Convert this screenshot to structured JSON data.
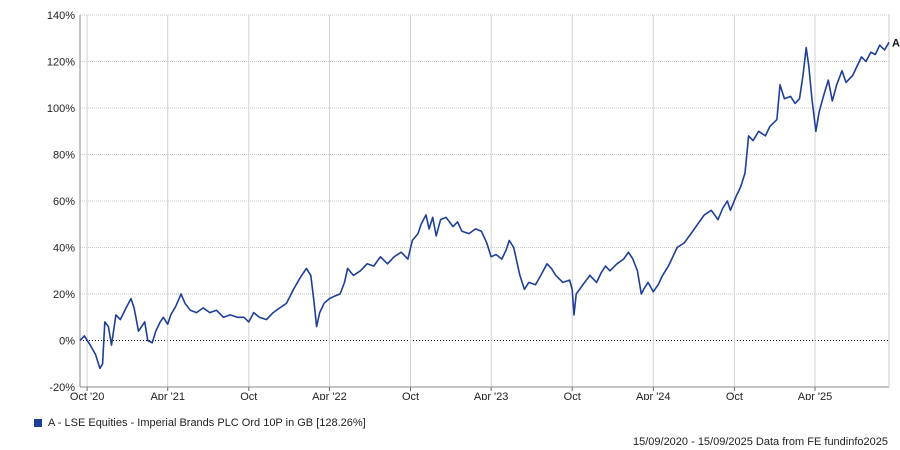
{
  "chart_data": {
    "type": "line",
    "title": "",
    "xlabel": "",
    "ylabel": "",
    "ylim": [
      -20,
      140
    ],
    "y_ticks": [
      -20,
      0,
      20,
      40,
      60,
      80,
      100,
      120,
      140
    ],
    "y_tick_labels": [
      "-20%",
      "0%",
      "20%",
      "40%",
      "60%",
      "80%",
      "100%",
      "120%",
      "140%"
    ],
    "xlim": [
      "2020-09-15",
      "2025-09-15"
    ],
    "x_ticks": [
      "2020-10-01",
      "2021-04-01",
      "2021-10-01",
      "2022-04-01",
      "2022-10-01",
      "2023-04-01",
      "2023-10-01",
      "2024-04-01",
      "2024-10-01",
      "2025-04-01"
    ],
    "x_tick_labels": [
      "Oct '20",
      "Apr '21",
      "Oct",
      "Apr '22",
      "Oct",
      "Apr '23",
      "Oct",
      "Apr '24",
      "Oct",
      "Apr '25"
    ],
    "grid": true,
    "zero_line": "dotted",
    "legend_position": "bottom-left",
    "series": [
      {
        "name": "A - LSE Equities - Imperial Brands PLC Ord 10P in GB [128.26%]",
        "tag": "A",
        "color": "#1f3f96",
        "points": [
          [
            "2020-09-15",
            0
          ],
          [
            "2020-09-25",
            2
          ],
          [
            "2020-10-08",
            -2
          ],
          [
            "2020-10-20",
            -6
          ],
          [
            "2020-10-30",
            -12
          ],
          [
            "2020-11-05",
            -10
          ],
          [
            "2020-11-10",
            8
          ],
          [
            "2020-11-18",
            6
          ],
          [
            "2020-11-25",
            -2
          ],
          [
            "2020-12-05",
            11
          ],
          [
            "2020-12-15",
            9
          ],
          [
            "2020-12-28",
            14
          ],
          [
            "2021-01-08",
            18
          ],
          [
            "2021-01-15",
            14
          ],
          [
            "2021-01-25",
            4
          ],
          [
            "2021-02-08",
            8
          ],
          [
            "2021-02-15",
            0
          ],
          [
            "2021-02-25",
            -1
          ],
          [
            "2021-03-05",
            4
          ],
          [
            "2021-03-15",
            8
          ],
          [
            "2021-03-22",
            10
          ],
          [
            "2021-04-01",
            7
          ],
          [
            "2021-04-08",
            11
          ],
          [
            "2021-04-20",
            15
          ],
          [
            "2021-05-01",
            20
          ],
          [
            "2021-05-10",
            16
          ],
          [
            "2021-05-22",
            13
          ],
          [
            "2021-06-05",
            12
          ],
          [
            "2021-06-20",
            14
          ],
          [
            "2021-07-05",
            12
          ],
          [
            "2021-07-20",
            13
          ],
          [
            "2021-08-05",
            10
          ],
          [
            "2021-08-20",
            11
          ],
          [
            "2021-09-05",
            10
          ],
          [
            "2021-09-20",
            10
          ],
          [
            "2021-10-01",
            8
          ],
          [
            "2021-10-12",
            12
          ],
          [
            "2021-10-25",
            10
          ],
          [
            "2021-11-10",
            9
          ],
          [
            "2021-11-25",
            12
          ],
          [
            "2021-12-10",
            14
          ],
          [
            "2021-12-25",
            16
          ],
          [
            "2022-01-10",
            22
          ],
          [
            "2022-01-25",
            27
          ],
          [
            "2022-02-08",
            31
          ],
          [
            "2022-02-18",
            28
          ],
          [
            "2022-02-25",
            17
          ],
          [
            "2022-03-03",
            6
          ],
          [
            "2022-03-10",
            12
          ],
          [
            "2022-03-20",
            16
          ],
          [
            "2022-04-01",
            18
          ],
          [
            "2022-04-12",
            19
          ],
          [
            "2022-04-25",
            20
          ],
          [
            "2022-05-05",
            25
          ],
          [
            "2022-05-12",
            31
          ],
          [
            "2022-05-25",
            28
          ],
          [
            "2022-06-10",
            30
          ],
          [
            "2022-06-25",
            33
          ],
          [
            "2022-07-10",
            32
          ],
          [
            "2022-07-25",
            36
          ],
          [
            "2022-08-10",
            33
          ],
          [
            "2022-08-25",
            36
          ],
          [
            "2022-09-10",
            38
          ],
          [
            "2022-09-25",
            35
          ],
          [
            "2022-10-05",
            43
          ],
          [
            "2022-10-18",
            46
          ],
          [
            "2022-10-25",
            50
          ],
          [
            "2022-11-05",
            54
          ],
          [
            "2022-11-12",
            48
          ],
          [
            "2022-11-20",
            53
          ],
          [
            "2022-11-28",
            45
          ],
          [
            "2022-12-08",
            52
          ],
          [
            "2022-12-20",
            53
          ],
          [
            "2023-01-05",
            49
          ],
          [
            "2023-01-15",
            51
          ],
          [
            "2023-01-25",
            47
          ],
          [
            "2023-02-10",
            46
          ],
          [
            "2023-02-25",
            48
          ],
          [
            "2023-03-10",
            47
          ],
          [
            "2023-03-22",
            42
          ],
          [
            "2023-04-01",
            36
          ],
          [
            "2023-04-12",
            37
          ],
          [
            "2023-04-25",
            35
          ],
          [
            "2023-05-05",
            39
          ],
          [
            "2023-05-12",
            43
          ],
          [
            "2023-05-22",
            40
          ],
          [
            "2023-06-05",
            28
          ],
          [
            "2023-06-15",
            22
          ],
          [
            "2023-06-25",
            25
          ],
          [
            "2023-07-10",
            24
          ],
          [
            "2023-07-22",
            28
          ],
          [
            "2023-08-05",
            33
          ],
          [
            "2023-08-15",
            31
          ],
          [
            "2023-08-25",
            28
          ],
          [
            "2023-09-10",
            25
          ],
          [
            "2023-09-25",
            26
          ],
          [
            "2023-10-01",
            22
          ],
          [
            "2023-10-05",
            11
          ],
          [
            "2023-10-10",
            20
          ],
          [
            "2023-10-25",
            24
          ],
          [
            "2023-11-10",
            28
          ],
          [
            "2023-11-25",
            25
          ],
          [
            "2023-12-05",
            29
          ],
          [
            "2023-12-15",
            32
          ],
          [
            "2023-12-25",
            30
          ],
          [
            "2024-01-10",
            33
          ],
          [
            "2024-01-25",
            35
          ],
          [
            "2024-02-05",
            38
          ],
          [
            "2024-02-15",
            35
          ],
          [
            "2024-02-25",
            30
          ],
          [
            "2024-03-05",
            20
          ],
          [
            "2024-03-10",
            22
          ],
          [
            "2024-03-20",
            25
          ],
          [
            "2024-04-01",
            21
          ],
          [
            "2024-04-12",
            24
          ],
          [
            "2024-04-22",
            28
          ],
          [
            "2024-05-05",
            32
          ],
          [
            "2024-05-15",
            36
          ],
          [
            "2024-05-25",
            40
          ],
          [
            "2024-06-10",
            42
          ],
          [
            "2024-06-25",
            46
          ],
          [
            "2024-07-10",
            50
          ],
          [
            "2024-07-25",
            54
          ],
          [
            "2024-08-10",
            56
          ],
          [
            "2024-08-25",
            52
          ],
          [
            "2024-09-05",
            57
          ],
          [
            "2024-09-15",
            60
          ],
          [
            "2024-09-22",
            56
          ],
          [
            "2024-10-05",
            62
          ],
          [
            "2024-10-15",
            66
          ],
          [
            "2024-10-25",
            72
          ],
          [
            "2024-11-02",
            88
          ],
          [
            "2024-11-12",
            86
          ],
          [
            "2024-11-25",
            90
          ],
          [
            "2024-12-10",
            88
          ],
          [
            "2024-12-20",
            92
          ],
          [
            "2025-01-05",
            95
          ],
          [
            "2025-01-12",
            110
          ],
          [
            "2025-01-22",
            104
          ],
          [
            "2025-02-05",
            105
          ],
          [
            "2025-02-15",
            102
          ],
          [
            "2025-02-25",
            104
          ],
          [
            "2025-03-05",
            114
          ],
          [
            "2025-03-12",
            126
          ],
          [
            "2025-03-18",
            118
          ],
          [
            "2025-03-25",
            104
          ],
          [
            "2025-04-03",
            90
          ],
          [
            "2025-04-10",
            98
          ],
          [
            "2025-04-20",
            105
          ],
          [
            "2025-05-01",
            112
          ],
          [
            "2025-05-10",
            103
          ],
          [
            "2025-05-20",
            110
          ],
          [
            "2025-06-01",
            116
          ],
          [
            "2025-06-10",
            111
          ],
          [
            "2025-06-25",
            114
          ],
          [
            "2025-07-05",
            118
          ],
          [
            "2025-07-15",
            122
          ],
          [
            "2025-07-25",
            120
          ],
          [
            "2025-08-05",
            124
          ],
          [
            "2025-08-15",
            123
          ],
          [
            "2025-08-25",
            127
          ],
          [
            "2025-09-05",
            125
          ],
          [
            "2025-09-15",
            128.26
          ]
        ]
      }
    ]
  },
  "legend": {
    "swatch_color": "#1f3f96",
    "label": "A - LSE Equities - Imperial Brands PLC Ord 10P in GB [128.26%]"
  },
  "footer": {
    "text": "15/09/2020 - 15/09/2025 Data from FE fundinfo2025"
  }
}
